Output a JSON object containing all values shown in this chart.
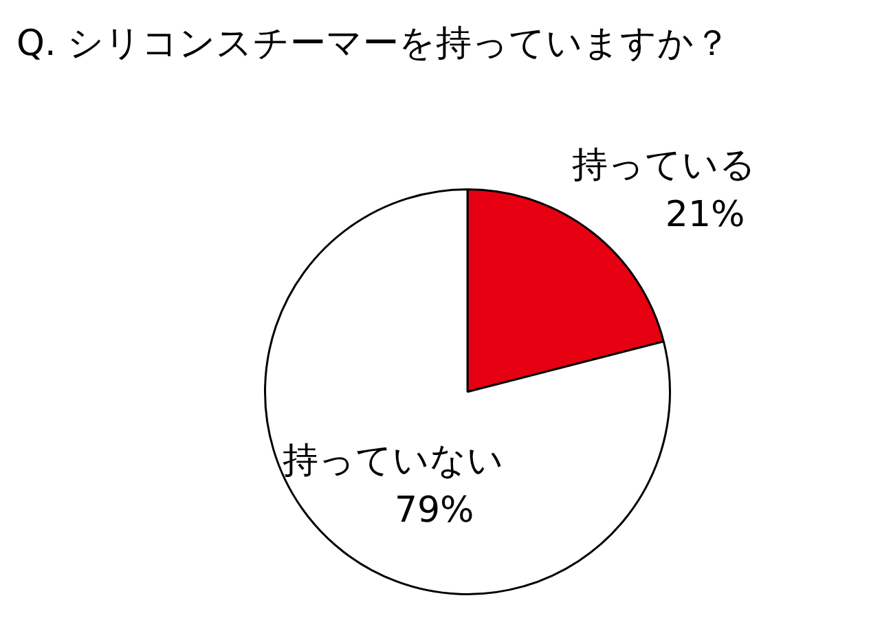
{
  "chart_data": {
    "type": "pie",
    "title": "Q. シリコンスチーマーを持っていますか？",
    "categories": [
      "持っている",
      "持っていない"
    ],
    "values": [
      21,
      79
    ],
    "value_labels": [
      "21%",
      "79%"
    ],
    "colors": [
      "#e60012",
      "#ffffff"
    ],
    "legend": false
  }
}
